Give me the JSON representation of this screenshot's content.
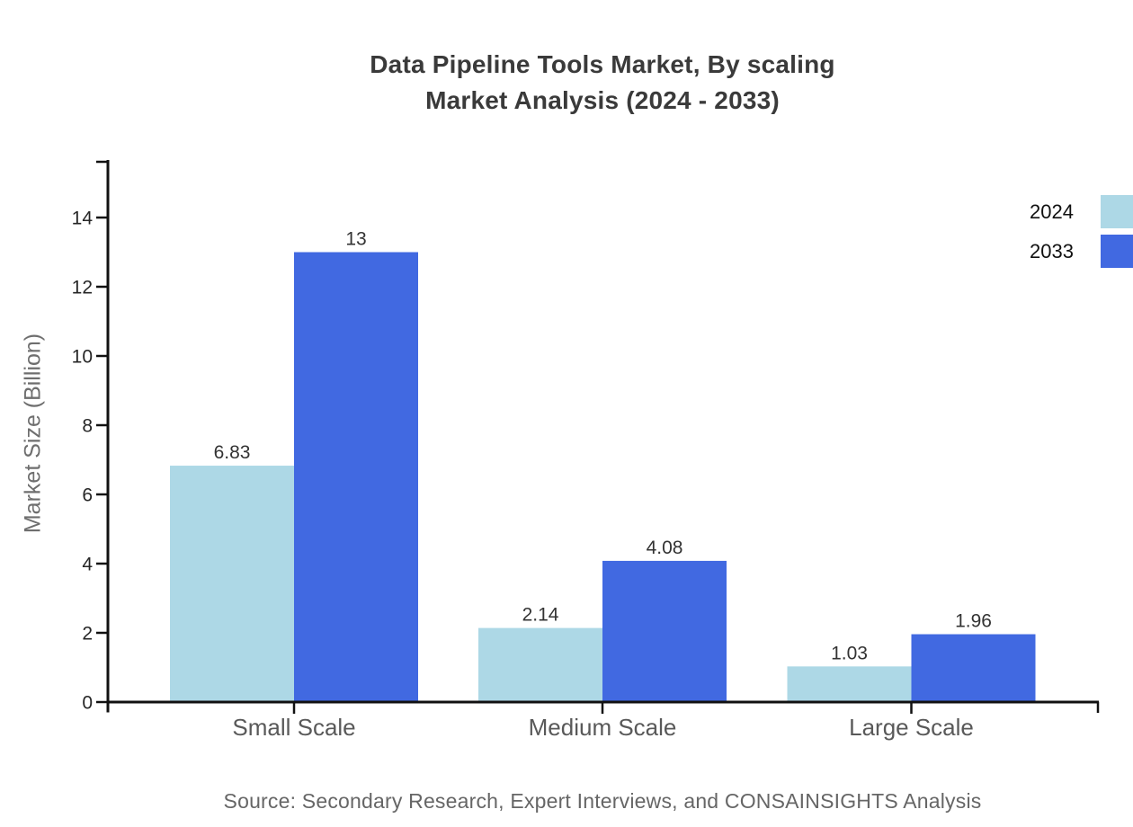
{
  "chart_data": {
    "type": "bar",
    "title": "Data Pipeline Tools Market, By scaling Market Analysis (2024 - 2033)",
    "title_lines": [
      "Data Pipeline Tools Market, By scaling",
      "Market Analysis (2024 - 2033)"
    ],
    "ylabel": "Market Size (Billion)",
    "xlabel": "",
    "categories": [
      "Small Scale",
      "Medium Scale",
      "Large Scale"
    ],
    "series": [
      {
        "name": "2024",
        "color": "#ADD8E6",
        "values": [
          6.83,
          2.14,
          1.03
        ],
        "value_labels": [
          "6.83",
          "2.14",
          "1.03"
        ]
      },
      {
        "name": "2033",
        "color": "#4169E1",
        "values": [
          13,
          4.08,
          1.96
        ],
        "value_labels": [
          "13",
          "4.08",
          "1.96"
        ]
      }
    ],
    "yticks": [
      0,
      2,
      4,
      6,
      8,
      10,
      12,
      14
    ],
    "ylim": [
      0,
      15.7
    ],
    "grid": false,
    "legend_position": "top-right",
    "source_note": "Source: Secondary Research, Expert Interviews, and CONSAINSIGHTS Analysis",
    "colors": {
      "series_2024": "#ADD8E6",
      "series_2033": "#4169E1",
      "axis": "#111111",
      "title_text": "#3a3a3a",
      "value_label_text": "#333333",
      "tick_label_text": "#262626",
      "category_text": "#595959",
      "muted_text": "#666666"
    }
  }
}
